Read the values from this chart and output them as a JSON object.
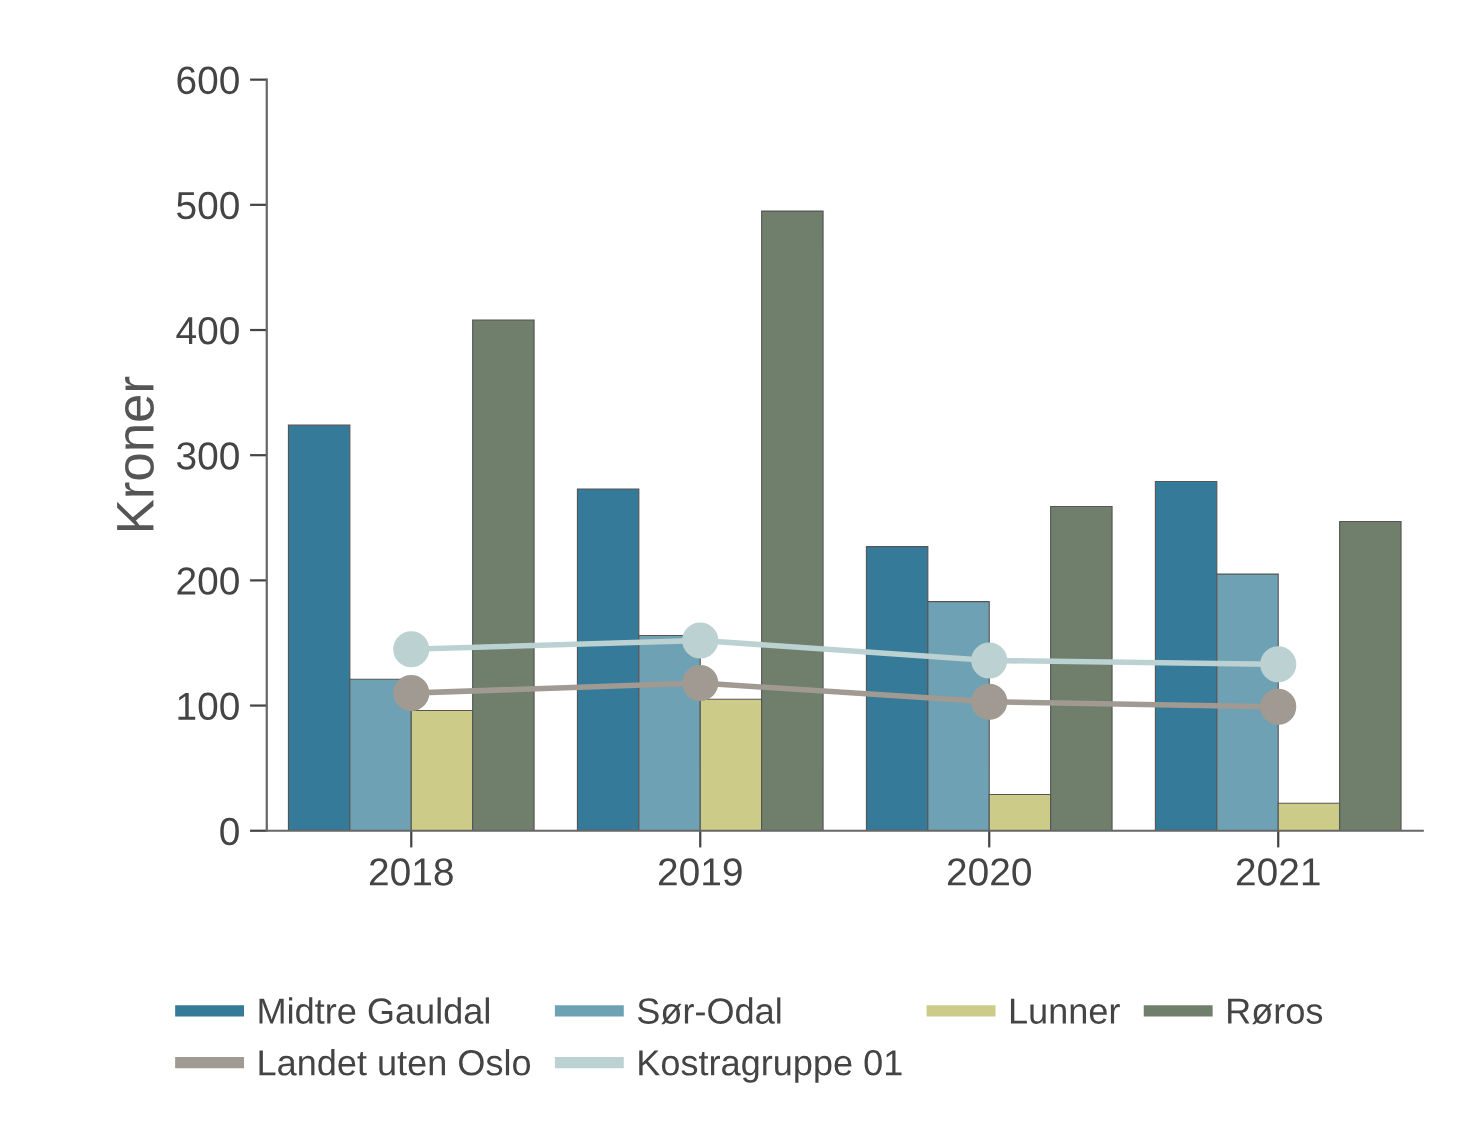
{
  "chart_data": {
    "type": "bar",
    "ylabel": "Kroner",
    "categories": [
      "2018",
      "2019",
      "2020",
      "2021"
    ],
    "series": [
      {
        "name": "Midtre Gauldal",
        "color": "#367a99",
        "values": [
          324,
          273,
          227,
          279
        ]
      },
      {
        "name": "Sør-Odal",
        "color": "#6fa1b4",
        "values": [
          121,
          156,
          183,
          205
        ]
      },
      {
        "name": "Lunner",
        "color": "#cccc88",
        "values": [
          96,
          105,
          29,
          22
        ]
      },
      {
        "name": "Røros",
        "color": "#6f7f6b",
        "values": [
          408,
          495,
          259,
          247
        ]
      },
      {
        "name": "Landet uten Oslo",
        "type": "line",
        "color": "#a19a92",
        "values": [
          110,
          118,
          103,
          99
        ]
      },
      {
        "name": "Kostragruppe 01",
        "type": "line",
        "color": "#bcd2d2",
        "values": [
          145,
          152,
          136,
          133
        ]
      }
    ],
    "ylim": [
      0,
      600
    ],
    "yticks": [
      0,
      100,
      200,
      300,
      400,
      500,
      600
    ],
    "grid": false,
    "legend": "bottom",
    "marker": "circle"
  }
}
